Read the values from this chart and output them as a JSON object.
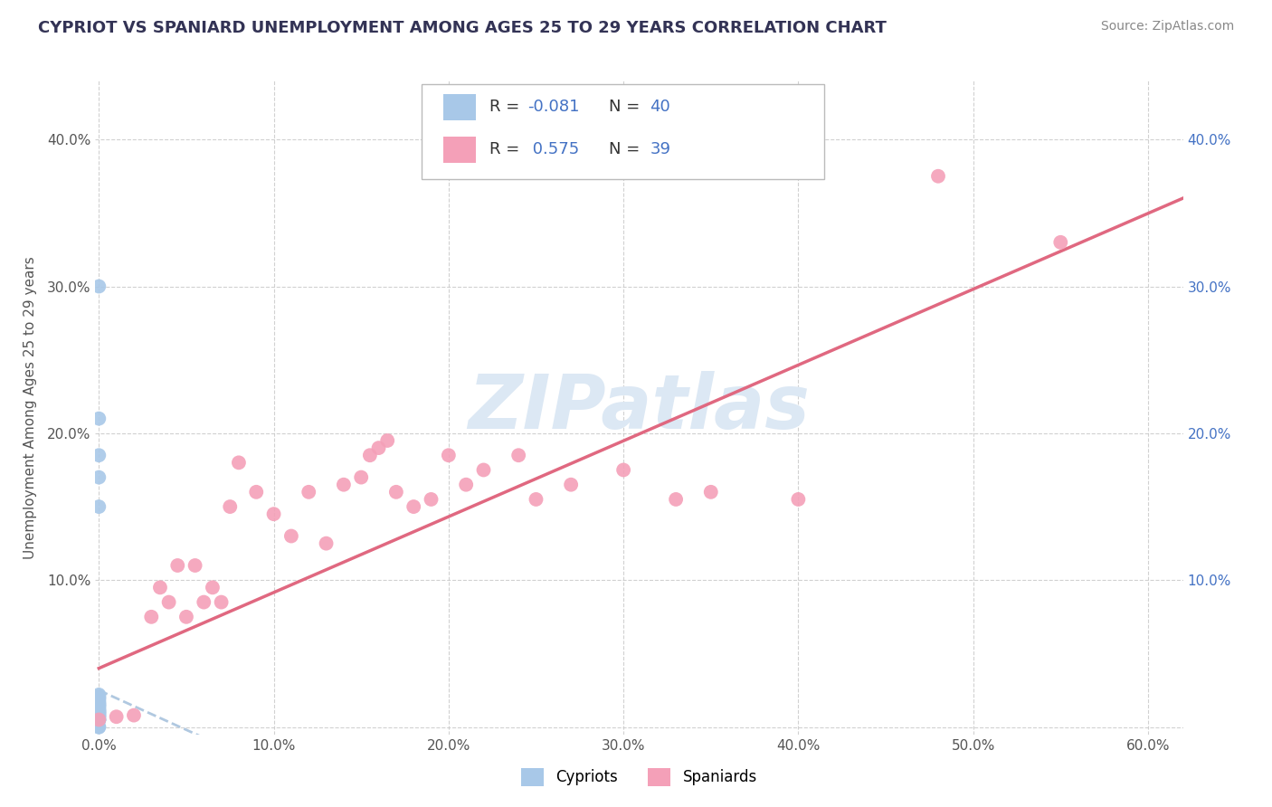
{
  "title": "CYPRIOT VS SPANIARD UNEMPLOYMENT AMONG AGES 25 TO 29 YEARS CORRELATION CHART",
  "source": "Source: ZipAtlas.com",
  "ylabel": "Unemployment Among Ages 25 to 29 years",
  "xlim": [
    -0.002,
    0.62
  ],
  "ylim": [
    -0.005,
    0.44
  ],
  "xticks": [
    0.0,
    0.1,
    0.2,
    0.3,
    0.4,
    0.5,
    0.6
  ],
  "yticks": [
    0.0,
    0.1,
    0.2,
    0.3,
    0.4
  ],
  "xticklabels": [
    "0.0%",
    "10.0%",
    "20.0%",
    "30.0%",
    "40.0%",
    "50.0%",
    "60.0%"
  ],
  "yticklabels": [
    "",
    "10.0%",
    "20.0%",
    "30.0%",
    "40.0%"
  ],
  "right_yticklabels": [
    "",
    "10.0%",
    "20.0%",
    "30.0%",
    "40.0%"
  ],
  "cypriot_color": "#a8c8e8",
  "spaniard_color": "#f4a0b8",
  "trendline_cypriot_color": "#b0c8e0",
  "trendline_spaniard_color": "#e06880",
  "watermark_color": "#dce8f4",
  "grid_color": "#cccccc",
  "r_cypriot": "-0.081",
  "n_cypriot": "40",
  "r_spaniard": "0.575",
  "n_spaniard": "39",
  "cypriot_x": [
    0.0,
    0.0,
    0.0,
    0.0,
    0.0,
    0.0,
    0.0,
    0.0,
    0.0,
    0.0,
    0.0,
    0.0,
    0.0,
    0.0,
    0.0,
    0.0,
    0.0,
    0.0,
    0.0,
    0.0,
    0.0,
    0.0,
    0.0,
    0.0,
    0.0,
    0.0,
    0.0,
    0.0,
    0.0,
    0.0,
    0.0,
    0.0,
    0.0,
    0.0,
    0.0,
    0.0,
    0.0,
    0.0,
    0.0,
    0.0
  ],
  "cypriot_y": [
    0.0,
    0.0,
    0.005,
    0.005,
    0.005,
    0.005,
    0.007,
    0.007,
    0.007,
    0.008,
    0.008,
    0.009,
    0.009,
    0.01,
    0.01,
    0.01,
    0.011,
    0.011,
    0.012,
    0.012,
    0.013,
    0.014,
    0.014,
    0.015,
    0.015,
    0.016,
    0.016,
    0.017,
    0.018,
    0.019,
    0.02,
    0.02,
    0.021,
    0.022,
    0.15,
    0.17,
    0.185,
    0.21,
    0.3,
    0.005
  ],
  "spaniard_x": [
    0.0,
    0.01,
    0.02,
    0.03,
    0.035,
    0.04,
    0.045,
    0.05,
    0.055,
    0.06,
    0.065,
    0.07,
    0.075,
    0.08,
    0.09,
    0.1,
    0.11,
    0.12,
    0.13,
    0.14,
    0.15,
    0.155,
    0.16,
    0.165,
    0.17,
    0.18,
    0.19,
    0.2,
    0.21,
    0.22,
    0.24,
    0.25,
    0.27,
    0.3,
    0.33,
    0.35,
    0.4,
    0.48,
    0.55
  ],
  "spaniard_y": [
    0.005,
    0.007,
    0.008,
    0.075,
    0.095,
    0.085,
    0.11,
    0.075,
    0.11,
    0.085,
    0.095,
    0.085,
    0.15,
    0.18,
    0.16,
    0.145,
    0.13,
    0.16,
    0.125,
    0.165,
    0.17,
    0.185,
    0.19,
    0.195,
    0.16,
    0.15,
    0.155,
    0.185,
    0.165,
    0.175,
    0.185,
    0.155,
    0.165,
    0.175,
    0.155,
    0.16,
    0.155,
    0.375,
    0.33
  ],
  "trendline_spaniard_x_start": 0.0,
  "trendline_spaniard_x_end": 0.62,
  "trendline_spaniard_y_start": 0.04,
  "trendline_spaniard_y_end": 0.36,
  "trendline_cypriot_x_start": 0.0,
  "trendline_cypriot_x_end": 0.065,
  "trendline_cypriot_y_start": 0.025,
  "trendline_cypriot_y_end": -0.01
}
